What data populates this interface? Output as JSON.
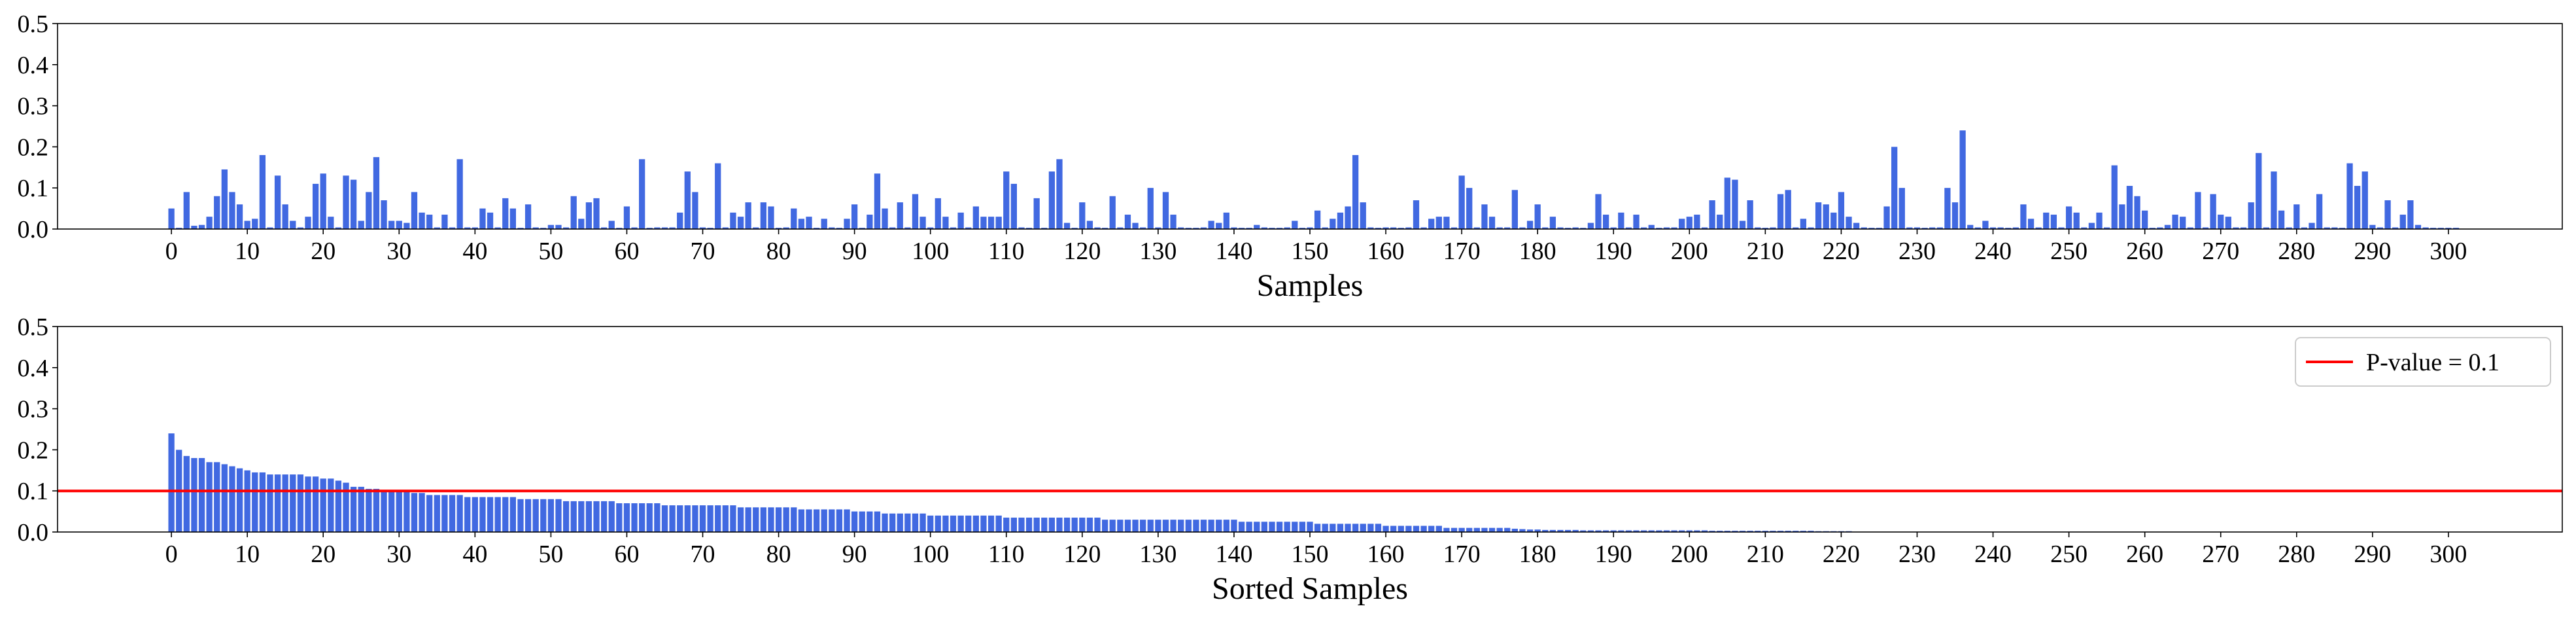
{
  "chart_data": [
    {
      "type": "bar",
      "xlabel": "Samples",
      "ylabel": "",
      "ylim": [
        0,
        0.5
      ],
      "yticks": [
        0.0,
        0.1,
        0.2,
        0.3,
        0.4,
        0.5
      ],
      "ytick_labels": [
        "0.0",
        "0.1",
        "0.2",
        "0.3",
        "0.4",
        "0.5"
      ],
      "xticks": [
        0,
        10,
        20,
        30,
        40,
        50,
        60,
        70,
        80,
        90,
        100,
        110,
        120,
        130,
        140,
        150,
        160,
        170,
        180,
        190,
        200,
        210,
        220,
        230,
        240,
        250,
        260,
        270,
        280,
        290,
        300
      ],
      "xtick_labels": [
        "0",
        "10",
        "20",
        "30",
        "40",
        "50",
        "60",
        "70",
        "80",
        "90",
        "100",
        "110",
        "120",
        "130",
        "140",
        "150",
        "160",
        "170",
        "180",
        "190",
        "200",
        "210",
        "220",
        "230",
        "240",
        "250",
        "260",
        "270",
        "280",
        "290",
        "300"
      ],
      "xlim": [
        -15,
        315
      ],
      "bar_color": "#4169e1",
      "values": [
        0.05,
        0.003,
        0.09,
        0.008,
        0.01,
        0.03,
        0.08,
        0.145,
        0.09,
        0.06,
        0.02,
        0.025,
        0.18,
        0.004,
        0.13,
        0.06,
        0.02,
        0.004,
        0.03,
        0.11,
        0.135,
        0.03,
        0.004,
        0.13,
        0.12,
        0.02,
        0.09,
        0.175,
        0.07,
        0.02,
        0.02,
        0.015,
        0.09,
        0.04,
        0.035,
        0.004,
        0.035,
        0.004,
        0.17,
        0.004,
        0.004,
        0.05,
        0.04,
        0.004,
        0.075,
        0.05,
        0.003,
        0.06,
        0.004,
        0.003,
        0.01,
        0.01,
        0.004,
        0.08,
        0.025,
        0.065,
        0.075,
        0.004,
        0.02,
        0.003,
        0.055,
        0.004,
        0.17,
        0.003,
        0.004,
        0.004,
        0.004,
        0.04,
        0.14,
        0.09,
        0.004,
        0.003,
        0.16,
        0.004,
        0.04,
        0.03,
        0.065,
        0.004,
        0.065,
        0.055,
        0.003,
        0.004,
        0.05,
        0.025,
        0.03,
        0.003,
        0.025,
        0.004,
        0.003,
        0.025,
        0.06,
        0.003,
        0.035,
        0.135,
        0.05,
        0.004,
        0.065,
        0.004,
        0.085,
        0.03,
        0.004,
        0.075,
        0.03,
        0.004,
        0.04,
        0.004,
        0.055,
        0.03,
        0.03,
        0.03,
        0.14,
        0.11,
        0.004,
        0.003,
        0.075,
        0.003,
        0.14,
        0.17,
        0.015,
        0.003,
        0.065,
        0.02,
        0.004,
        0.003,
        0.08,
        0.004,
        0.035,
        0.015,
        0.004,
        0.1,
        0.004,
        0.09,
        0.035,
        0.004,
        0.003,
        0.003,
        0.004,
        0.02,
        0.015,
        0.04,
        0.004,
        0.003,
        0.003,
        0.01,
        0.004,
        0.003,
        0.003,
        0.004,
        0.02,
        0.003,
        0.004,
        0.045,
        0.004,
        0.025,
        0.04,
        0.055,
        0.18,
        0.065,
        0.004,
        0.003,
        0.004,
        0.004,
        0.003,
        0.004,
        0.07,
        0.004,
        0.025,
        0.03,
        0.03,
        0.004,
        0.13,
        0.1,
        0.004,
        0.06,
        0.03,
        0.004,
        0.004,
        0.095,
        0.004,
        0.02,
        0.06,
        0.004,
        0.03,
        0.004,
        0.003,
        0.004,
        0.003,
        0.015,
        0.085,
        0.035,
        0.004,
        0.04,
        0.004,
        0.035,
        0.004,
        0.01,
        0.003,
        0.004,
        0.004,
        0.025,
        0.03,
        0.035,
        0.004,
        0.07,
        0.035,
        0.125,
        0.12,
        0.02,
        0.07,
        0.004,
        0.003,
        0.004,
        0.085,
        0.095,
        0.004,
        0.025,
        0.004,
        0.065,
        0.06,
        0.04,
        0.09,
        0.03,
        0.015,
        0.004,
        0.003,
        0.003,
        0.055,
        0.2,
        0.1,
        0.004,
        0.004,
        0.003,
        0.004,
        0.004,
        0.1,
        0.065,
        0.24,
        0.01,
        0.004,
        0.02,
        0.004,
        0.004,
        0.003,
        0.004,
        0.06,
        0.025,
        0.004,
        0.04,
        0.035,
        0.004,
        0.055,
        0.04,
        0.004,
        0.015,
        0.04,
        0.004,
        0.155,
        0.06,
        0.105,
        0.08,
        0.045,
        0.003,
        0.004,
        0.01,
        0.035,
        0.03,
        0.004,
        0.09,
        0.004,
        0.085,
        0.035,
        0.03,
        0.004,
        0.004,
        0.065,
        0.185,
        0.004,
        0.14,
        0.045,
        0.004,
        0.06,
        0.004,
        0.015,
        0.085,
        0.004,
        0.004,
        0.003,
        0.16,
        0.105,
        0.14,
        0.01,
        0.004,
        0.07,
        0.004,
        0.035,
        0.07,
        0.01,
        0.004,
        0.003,
        0.003,
        0.003,
        0.003
      ]
    },
    {
      "type": "bar",
      "xlabel": "Sorted Samples",
      "ylabel": "",
      "ylim": [
        0,
        0.5
      ],
      "yticks": [
        0.0,
        0.1,
        0.2,
        0.3,
        0.4,
        0.5
      ],
      "ytick_labels": [
        "0.0",
        "0.1",
        "0.2",
        "0.3",
        "0.4",
        "0.5"
      ],
      "xticks": [
        0,
        10,
        20,
        30,
        40,
        50,
        60,
        70,
        80,
        90,
        100,
        110,
        120,
        130,
        140,
        150,
        160,
        170,
        180,
        190,
        200,
        210,
        220,
        230,
        240,
        250,
        260,
        270,
        280,
        290,
        300
      ],
      "xtick_labels": [
        "0",
        "10",
        "20",
        "30",
        "40",
        "50",
        "60",
        "70",
        "80",
        "90",
        "100",
        "110",
        "120",
        "130",
        "140",
        "150",
        "160",
        "170",
        "180",
        "190",
        "200",
        "210",
        "220",
        "230",
        "240",
        "250",
        "260",
        "270",
        "280",
        "290",
        "300"
      ],
      "xlim": [
        -15,
        315
      ],
      "bar_color": "#4169e1",
      "values": [
        0.24,
        0.2,
        0.185,
        0.18,
        0.18,
        0.17,
        0.17,
        0.165,
        0.16,
        0.155,
        0.15,
        0.145,
        0.145,
        0.14,
        0.14,
        0.14,
        0.14,
        0.14,
        0.135,
        0.135,
        0.13,
        0.13,
        0.125,
        0.12,
        0.11,
        0.11,
        0.105,
        0.105,
        0.1,
        0.1,
        0.1,
        0.1,
        0.095,
        0.095,
        0.09,
        0.09,
        0.09,
        0.09,
        0.09,
        0.085,
        0.085,
        0.085,
        0.085,
        0.085,
        0.085,
        0.085,
        0.08,
        0.08,
        0.08,
        0.08,
        0.08,
        0.08,
        0.075,
        0.075,
        0.075,
        0.075,
        0.075,
        0.075,
        0.075,
        0.07,
        0.07,
        0.07,
        0.07,
        0.07,
        0.07,
        0.065,
        0.065,
        0.065,
        0.065,
        0.065,
        0.065,
        0.065,
        0.065,
        0.065,
        0.065,
        0.06,
        0.06,
        0.06,
        0.06,
        0.06,
        0.06,
        0.06,
        0.06,
        0.055,
        0.055,
        0.055,
        0.055,
        0.055,
        0.055,
        0.055,
        0.05,
        0.05,
        0.05,
        0.05,
        0.045,
        0.045,
        0.045,
        0.045,
        0.045,
        0.045,
        0.04,
        0.04,
        0.04,
        0.04,
        0.04,
        0.04,
        0.04,
        0.04,
        0.04,
        0.04,
        0.035,
        0.035,
        0.035,
        0.035,
        0.035,
        0.035,
        0.035,
        0.035,
        0.035,
        0.035,
        0.035,
        0.035,
        0.035,
        0.03,
        0.03,
        0.03,
        0.03,
        0.03,
        0.03,
        0.03,
        0.03,
        0.03,
        0.03,
        0.03,
        0.03,
        0.03,
        0.03,
        0.03,
        0.03,
        0.03,
        0.03,
        0.025,
        0.025,
        0.025,
        0.025,
        0.025,
        0.025,
        0.025,
        0.025,
        0.025,
        0.025,
        0.02,
        0.02,
        0.02,
        0.02,
        0.02,
        0.02,
        0.02,
        0.02,
        0.02,
        0.015,
        0.015,
        0.015,
        0.015,
        0.015,
        0.015,
        0.015,
        0.015,
        0.01,
        0.01,
        0.01,
        0.01,
        0.01,
        0.01,
        0.01,
        0.01,
        0.01,
        0.008,
        0.007,
        0.006,
        0.006,
        0.005,
        0.005,
        0.005,
        0.005,
        0.005,
        0.004,
        0.004,
        0.004,
        0.004,
        0.004,
        0.004,
        0.004,
        0.004,
        0.004,
        0.004,
        0.004,
        0.004,
        0.004,
        0.004,
        0.004,
        0.004,
        0.004,
        0.003,
        0.003,
        0.003,
        0.003,
        0.003,
        0.003,
        0.003,
        0.003,
        0.003,
        0.003,
        0.003,
        0.003,
        0.003,
        0.003,
        0.002,
        0.002,
        0.002,
        0.002,
        0.002
      ],
      "reference_line": {
        "y": 0.1,
        "color": "#ff0000",
        "label": "P-value = 0.1"
      },
      "legend_position": "top-right"
    }
  ]
}
